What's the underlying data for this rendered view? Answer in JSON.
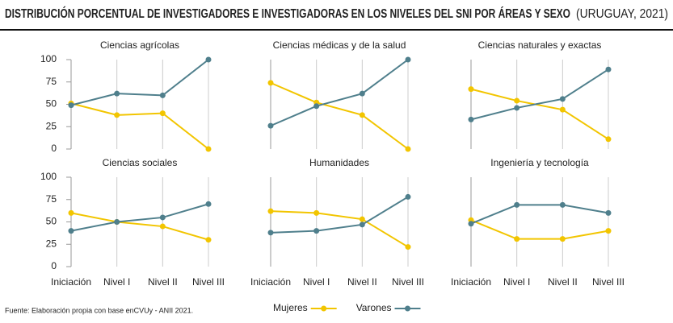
{
  "title": "DISTRIBUCIÓN PORCENTUAL DE INVESTIGADORES E INVESTIGADORAS EN LOS NIVELES DEL SNI POR ÁREAS Y SEXO",
  "title_note": "(URUGUAY, 2021)",
  "source": "Fuente: Elaboración propia con base enCVUy - ANII 2021.",
  "chart_data": [
    {
      "type": "line",
      "title": "Ciencias agrícolas",
      "categories": [
        null,
        null,
        null,
        null
      ],
      "ylim": [
        0,
        100
      ],
      "yticks": [
        0,
        25,
        50,
        75,
        100
      ],
      "series": [
        {
          "name": "Mujeres",
          "color": "#f2c500",
          "values": [
            51,
            38,
            40,
            0
          ]
        },
        {
          "name": "Varones",
          "color": "#4f7f8c",
          "values": [
            49,
            62,
            60,
            100
          ]
        }
      ]
    },
    {
      "type": "line",
      "title": "Ciencias médicas y de la salud",
      "categories": [
        null,
        null,
        null,
        null
      ],
      "ylim": [
        0,
        100
      ],
      "series": [
        {
          "name": "Mujeres",
          "color": "#f2c500",
          "values": [
            74,
            52,
            38,
            0
          ]
        },
        {
          "name": "Varones",
          "color": "#4f7f8c",
          "values": [
            26,
            48,
            62,
            100
          ]
        }
      ]
    },
    {
      "type": "line",
      "title": "Ciencias naturales y exactas",
      "categories": [
        null,
        null,
        null,
        null
      ],
      "ylim": [
        0,
        100
      ],
      "series": [
        {
          "name": "Mujeres",
          "color": "#f2c500",
          "values": [
            67,
            54,
            44,
            11
          ]
        },
        {
          "name": "Varones",
          "color": "#4f7f8c",
          "values": [
            33,
            46,
            56,
            89
          ]
        }
      ]
    },
    {
      "type": "line",
      "title": "Ciencias sociales",
      "categories": [
        "Iniciación",
        "Nivel I",
        "Nivel II",
        "Nivel III"
      ],
      "ylim": [
        0,
        100
      ],
      "yticks": [
        0,
        25,
        50,
        75,
        100
      ],
      "series": [
        {
          "name": "Mujeres",
          "color": "#f2c500",
          "values": [
            60,
            50,
            45,
            30
          ]
        },
        {
          "name": "Varones",
          "color": "#4f7f8c",
          "values": [
            40,
            50,
            55,
            70
          ]
        }
      ]
    },
    {
      "type": "line",
      "title": "Humanidades",
      "categories": [
        "Iniciación",
        "Nivel I",
        "Nivel II",
        "Nivel III"
      ],
      "ylim": [
        0,
        100
      ],
      "series": [
        {
          "name": "Mujeres",
          "color": "#f2c500",
          "values": [
            62,
            60,
            53,
            22
          ]
        },
        {
          "name": "Varones",
          "color": "#4f7f8c",
          "values": [
            38,
            40,
            47,
            78
          ]
        }
      ]
    },
    {
      "type": "line",
      "title": "Ingeniería y tecnología",
      "categories": [
        "Iniciación",
        "Nivel I",
        "Nivel II",
        "Nivel III"
      ],
      "ylim": [
        0,
        100
      ],
      "series": [
        {
          "name": "Mujeres",
          "color": "#f2c500",
          "values": [
            52,
            31,
            31,
            40
          ]
        },
        {
          "name": "Varones",
          "color": "#4f7f8c",
          "values": [
            48,
            69,
            69,
            60
          ]
        }
      ]
    }
  ]
}
